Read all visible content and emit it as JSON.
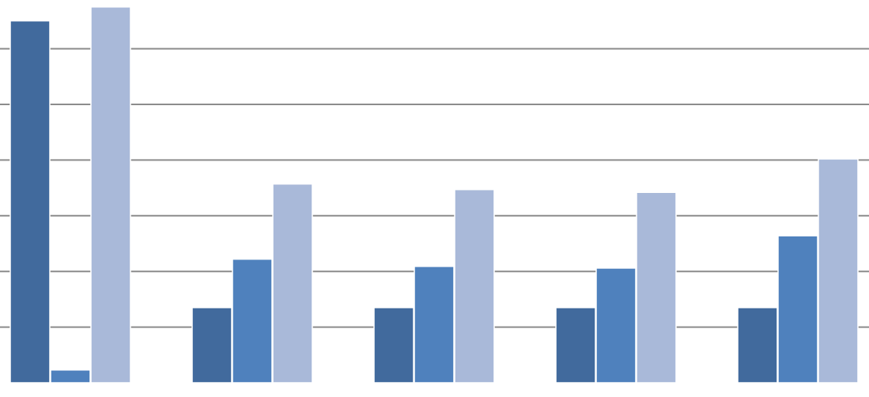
{
  "chart_data": {
    "type": "bar",
    "categories": [
      null,
      null,
      null,
      null,
      null
    ],
    "series": [
      {
        "color": "#416a9d",
        "values": [
          6.5,
          1.35,
          1.35,
          1.35,
          1.35
        ]
      },
      {
        "color": "#4f81bd",
        "values": [
          0.23,
          2.22,
          2.09,
          2.06,
          2.64
        ]
      },
      {
        "color": "#a9b9d9",
        "values": [
          6.75,
          3.57,
          3.47,
          3.42,
          4.02
        ]
      }
    ],
    "ylim": [
      0,
      6.875
    ],
    "yticks": [
      1,
      2,
      3,
      4,
      5,
      6
    ],
    "grid": true
  }
}
